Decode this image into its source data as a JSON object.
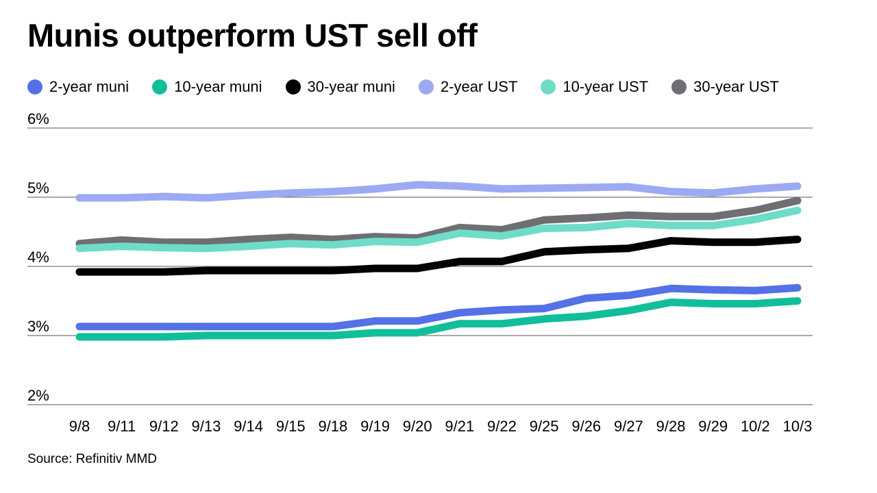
{
  "title": "Munis outperform UST sell off",
  "source": "Source: Refinitiv MMD",
  "chart_data": {
    "type": "line",
    "title": "Munis outperform UST sell off",
    "xlabel": "",
    "ylabel": "",
    "ylim": [
      2,
      6
    ],
    "yticks": [
      "2%",
      "3%",
      "4%",
      "5%",
      "6%"
    ],
    "ytick_values": [
      2,
      3,
      4,
      5,
      6
    ],
    "grid": "horizontal",
    "legend_position": "top",
    "categories": [
      "9/8",
      "9/11",
      "9/12",
      "9/13",
      "9/14",
      "9/15",
      "9/18",
      "9/19",
      "9/20",
      "9/21",
      "9/22",
      "9/25",
      "9/26",
      "9/27",
      "9/28",
      "9/29",
      "10/2",
      "10/3"
    ],
    "series": [
      {
        "name": "2-year UST",
        "color": "#9BAAF2",
        "values": [
          4.99,
          4.99,
          5.01,
          4.99,
          5.03,
          5.06,
          5.08,
          5.12,
          5.18,
          5.16,
          5.12,
          5.13,
          5.14,
          5.15,
          5.08,
          5.06,
          5.12,
          5.16
        ]
      },
      {
        "name": "30-year UST",
        "color": "#6E6E73",
        "values": [
          4.33,
          4.38,
          4.35,
          4.35,
          4.39,
          4.42,
          4.39,
          4.43,
          4.41,
          4.56,
          4.53,
          4.67,
          4.7,
          4.74,
          4.72,
          4.72,
          4.81,
          4.95
        ]
      },
      {
        "name": "10-year UST",
        "color": "#6FDCC8",
        "values": [
          4.26,
          4.29,
          4.27,
          4.26,
          4.29,
          4.33,
          4.31,
          4.36,
          4.35,
          4.48,
          4.44,
          4.55,
          4.56,
          4.62,
          4.59,
          4.59,
          4.68,
          4.81
        ]
      },
      {
        "name": "30-year muni",
        "color": "#000000",
        "values": [
          3.92,
          3.92,
          3.92,
          3.94,
          3.94,
          3.94,
          3.94,
          3.97,
          3.97,
          4.07,
          4.07,
          4.21,
          4.24,
          4.26,
          4.37,
          4.35,
          4.35,
          4.39
        ]
      },
      {
        "name": "2-year muni",
        "color": "#5471E6",
        "values": [
          3.13,
          3.13,
          3.13,
          3.13,
          3.13,
          3.13,
          3.13,
          3.21,
          3.21,
          3.33,
          3.37,
          3.39,
          3.54,
          3.58,
          3.68,
          3.66,
          3.65,
          3.69
        ]
      },
      {
        "name": "10-year muni",
        "color": "#10BE9A",
        "values": [
          2.98,
          2.98,
          2.98,
          3.0,
          3.0,
          3.0,
          3.0,
          3.04,
          3.04,
          3.17,
          3.17,
          3.24,
          3.28,
          3.36,
          3.48,
          3.46,
          3.46,
          3.5
        ]
      }
    ],
    "legend": [
      {
        "name": "2-year muni",
        "color": "#5471E6"
      },
      {
        "name": "10-year muni",
        "color": "#10BE9A"
      },
      {
        "name": "30-year muni",
        "color": "#000000"
      },
      {
        "name": "2-year UST",
        "color": "#9BAAF2"
      },
      {
        "name": "10-year UST",
        "color": "#6FDCC8"
      },
      {
        "name": "30-year UST",
        "color": "#6E6E73"
      }
    ]
  }
}
